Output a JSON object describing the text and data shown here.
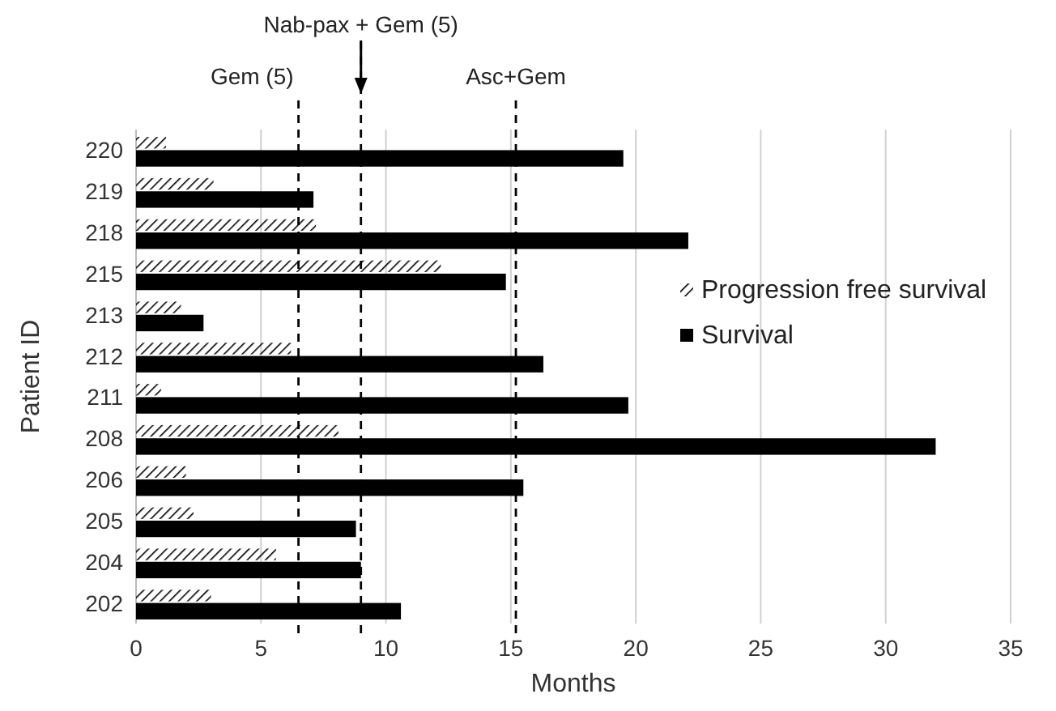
{
  "chart_data": {
    "type": "bar",
    "orientation": "horizontal",
    "xlabel": "Months",
    "ylabel": "Patient ID",
    "categories": [
      "220",
      "219",
      "218",
      "215",
      "213",
      "212",
      "211",
      "208",
      "206",
      "205",
      "204",
      "202"
    ],
    "series": [
      {
        "name": "Progression free survival",
        "color": "#000000",
        "values": [
          1.2,
          3.1,
          7.2,
          12.2,
          1.8,
          6.2,
          1.0,
          8.1,
          2.0,
          2.3,
          5.6,
          3.0
        ]
      },
      {
        "name": "Survival",
        "color": "#000000",
        "values": [
          19.5,
          7.1,
          22.1,
          14.8,
          2.7,
          16.3,
          19.7,
          32,
          15.5,
          8.8,
          9.0,
          10.6
        ]
      }
    ],
    "xlim": [
      0,
      35
    ],
    "xticks": [
      0,
      5,
      10,
      15,
      20,
      25,
      30,
      35
    ],
    "grid": "x",
    "legend": "right",
    "ref_lines": [
      {
        "axis": "x",
        "value": 6.5,
        "label": "Gem (5)",
        "line_style": "dashed",
        "color": "#000000"
      },
      {
        "axis": "x",
        "value": 9.0,
        "label": "Nab-pax + Gem (5)",
        "line_style": "dashed",
        "color": "#000000"
      },
      {
        "axis": "x",
        "value": 15.2,
        "label": "Asc+Gem",
        "line_style": "dashed",
        "color": "#000000"
      }
    ]
  }
}
